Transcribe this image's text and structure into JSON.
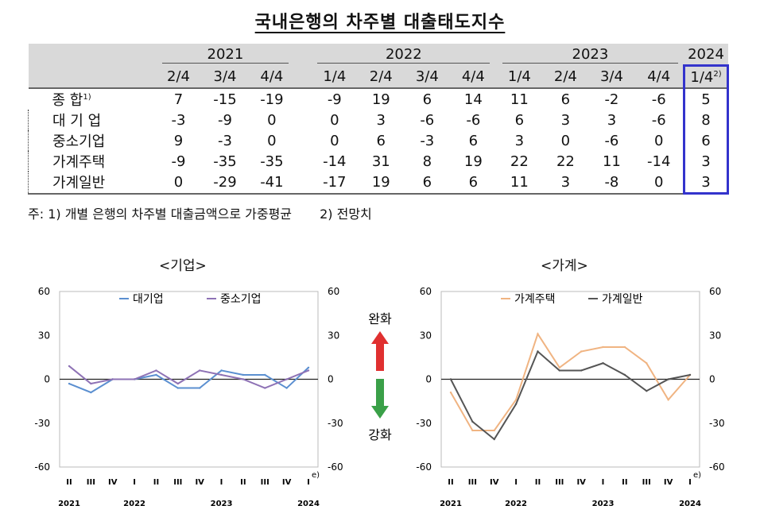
{
  "title": "국내은행의 차주별 대출태도지수",
  "table": {
    "years": [
      {
        "label": "2021",
        "span": 3
      },
      {
        "label": "2022",
        "span": 4
      },
      {
        "label": "2023",
        "span": 4
      },
      {
        "label": "2024",
        "span": 1
      }
    ],
    "quarters": [
      "2/4",
      "3/4",
      "4/4",
      "1/4",
      "2/4",
      "3/4",
      "4/4",
      "1/4",
      "2/4",
      "3/4",
      "4/4",
      "1/4"
    ],
    "quarter_last_sup": "2)",
    "rows": [
      {
        "label": "종 합",
        "sup": "1)",
        "values": [
          "7",
          "-15",
          "-19",
          "-9",
          "19",
          "6",
          "14",
          "11",
          "6",
          "-2",
          "-6",
          "5"
        ]
      },
      {
        "label": "대 기 업",
        "sup": "",
        "values": [
          "-3",
          "-9",
          "0",
          "0",
          "3",
          "-6",
          "-6",
          "6",
          "3",
          "3",
          "-6",
          "8"
        ]
      },
      {
        "label": "중소기업",
        "sup": "",
        "values": [
          "9",
          "-3",
          "0",
          "0",
          "6",
          "-3",
          "6",
          "3",
          "0",
          "-6",
          "0",
          "6"
        ]
      },
      {
        "label": "가계주택",
        "sup": "",
        "values": [
          "-9",
          "-35",
          "-35",
          "-14",
          "31",
          "8",
          "19",
          "22",
          "22",
          "11",
          "-14",
          "3"
        ]
      },
      {
        "label": "가계일반",
        "sup": "",
        "values": [
          "0",
          "-29",
          "-41",
          "-17",
          "19",
          "6",
          "6",
          "11",
          "3",
          "-8",
          "0",
          "3"
        ]
      }
    ],
    "highlight_color": "#3333cc"
  },
  "notes": [
    "주: 1) 개별 은행의 차주별 대출금액으로 가중평균",
    "2) 전망치"
  ],
  "arrows": {
    "up_label": "완화",
    "down_label": "강화",
    "up_color": "#e03030",
    "down_color": "#3aa048"
  },
  "chart_data": [
    {
      "type": "line",
      "title": "<기업>",
      "x": [
        "II",
        "III",
        "IV",
        "I",
        "II",
        "III",
        "IV",
        "I",
        "II",
        "III",
        "IV",
        "I"
      ],
      "x_last_sup": "e)",
      "year_labels": [
        "2021",
        "2022",
        "2023",
        "2024"
      ],
      "ylim": [
        -60,
        60
      ],
      "yticks": [
        "60",
        "30",
        "0",
        "-30",
        "-60"
      ],
      "series": [
        {
          "name": "대기업",
          "color": "#5b8fd0",
          "values": [
            -3,
            -9,
            0,
            0,
            3,
            -6,
            -6,
            6,
            3,
            3,
            -6,
            8
          ]
        },
        {
          "name": "중소기업",
          "color": "#8e72b5",
          "values": [
            9,
            -3,
            0,
            0,
            6,
            -3,
            6,
            3,
            0,
            -6,
            0,
            6
          ]
        }
      ],
      "legend": "top"
    },
    {
      "type": "line",
      "title": "<가계>",
      "x": [
        "II",
        "III",
        "IV",
        "I",
        "II",
        "III",
        "IV",
        "I",
        "II",
        "III",
        "IV",
        "I"
      ],
      "x_last_sup": "e)",
      "year_labels": [
        "2021",
        "2022",
        "2023",
        "2024"
      ],
      "ylim": [
        -60,
        60
      ],
      "yticks": [
        "60",
        "30",
        "0",
        "-30",
        "-60"
      ],
      "series": [
        {
          "name": "가계주택",
          "color": "#f0b482",
          "values": [
            -9,
            -35,
            -35,
            -14,
            31,
            8,
            19,
            22,
            22,
            11,
            -14,
            3
          ]
        },
        {
          "name": "가계일반",
          "color": "#555555",
          "values": [
            0,
            -29,
            -41,
            -17,
            19,
            6,
            6,
            11,
            3,
            -8,
            0,
            3
          ]
        }
      ],
      "legend": "top"
    }
  ]
}
